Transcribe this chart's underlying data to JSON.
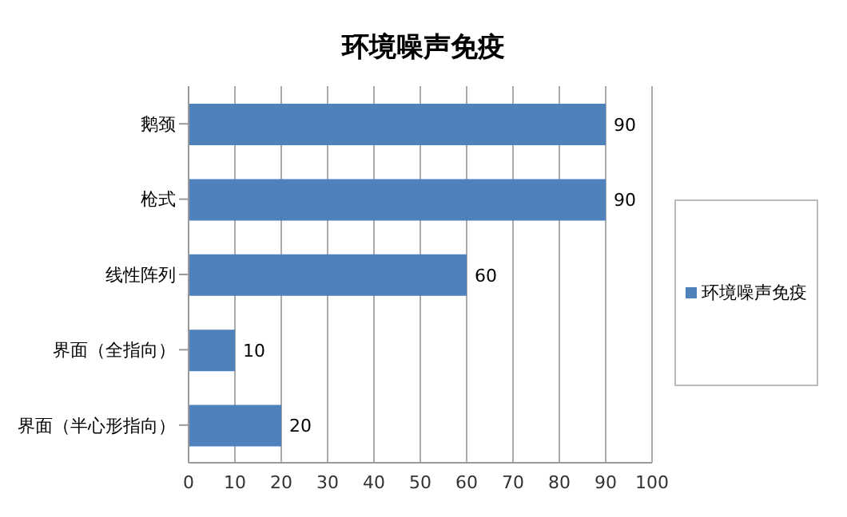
{
  "chart_data": {
    "type": "bar",
    "title": "环境噪声免疫",
    "orientation": "horizontal",
    "categories": [
      "鹅颈",
      "枪式",
      "线性阵列",
      "界面（全指向）",
      "界面（半心形指向）"
    ],
    "series": [
      {
        "name": "环境噪声免疫",
        "color": "#4f81bd",
        "values": [
          90,
          90,
          60,
          10,
          20
        ]
      }
    ],
    "xlim": [
      0,
      100
    ],
    "xticks": [
      0,
      10,
      20,
      30,
      40,
      50,
      60,
      70,
      80,
      90,
      100
    ],
    "grid": "x",
    "legend": "right",
    "data_labels": true
  }
}
